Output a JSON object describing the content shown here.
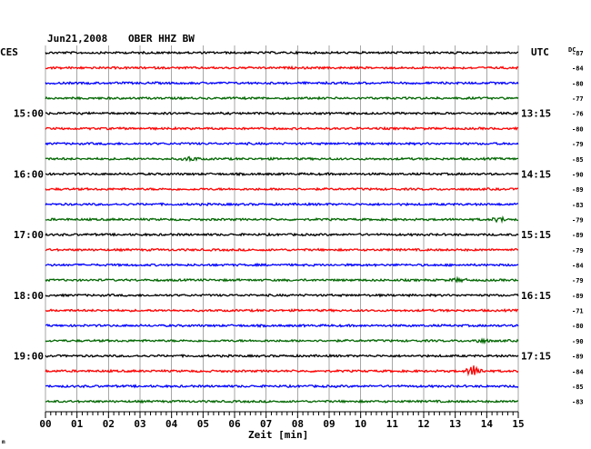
{
  "header": {
    "date": "Jun21,2008",
    "station": "OBER HHZ BW",
    "left_zone": "CES",
    "right_zone": "UTC",
    "dc_label": "DC"
  },
  "footer": {
    "xlabel": "Zeit [min]",
    "corner_mark": "m"
  },
  "colors": {
    "black": "#000000",
    "red": "#ff0000",
    "blue": "#0000ff",
    "green": "#006600",
    "grid": "#808080"
  },
  "chart_data": {
    "type": "line",
    "title": "Jun21,2008 OBER HHZ BW",
    "xlabel": "Zeit [min]",
    "xlim": [
      0,
      15
    ],
    "x_ticks": [
      "00",
      "01",
      "02",
      "03",
      "04",
      "05",
      "06",
      "07",
      "08",
      "09",
      "10",
      "11",
      "12",
      "13",
      "14",
      "15"
    ],
    "left_hour_labels": [
      {
        "trace_index": 4,
        "label": "15:00"
      },
      {
        "trace_index": 8,
        "label": "16:00"
      },
      {
        "trace_index": 12,
        "label": "17:00"
      },
      {
        "trace_index": 16,
        "label": "18:00"
      },
      {
        "trace_index": 20,
        "label": "19:00"
      }
    ],
    "right_hour_labels": [
      {
        "trace_index": 4,
        "label": "13:15"
      },
      {
        "trace_index": 8,
        "label": "14:15"
      },
      {
        "trace_index": 12,
        "label": "15:15"
      },
      {
        "trace_index": 16,
        "label": "16:15"
      },
      {
        "trace_index": 20,
        "label": "17:15"
      }
    ],
    "series": [
      {
        "color": "black",
        "dc": "-87"
      },
      {
        "color": "red",
        "dc": "-84"
      },
      {
        "color": "blue",
        "dc": "-80"
      },
      {
        "color": "green",
        "dc": "-77"
      },
      {
        "color": "black",
        "dc": "-76"
      },
      {
        "color": "red",
        "dc": "-80"
      },
      {
        "color": "blue",
        "dc": "-79"
      },
      {
        "color": "green",
        "dc": "-85",
        "event": {
          "minute": 4.6,
          "amp": 2.0
        }
      },
      {
        "color": "black",
        "dc": "-90"
      },
      {
        "color": "red",
        "dc": "-89"
      },
      {
        "color": "blue",
        "dc": "-83"
      },
      {
        "color": "green",
        "dc": "-79",
        "event": {
          "minute": 14.4,
          "amp": 2.2
        }
      },
      {
        "color": "black",
        "dc": "-89"
      },
      {
        "color": "red",
        "dc": "-79"
      },
      {
        "color": "blue",
        "dc": "-84"
      },
      {
        "color": "green",
        "dc": "-79",
        "event": {
          "minute": 13.1,
          "amp": 1.6
        }
      },
      {
        "color": "black",
        "dc": "-89"
      },
      {
        "color": "red",
        "dc": "-71"
      },
      {
        "color": "blue",
        "dc": "-80"
      },
      {
        "color": "green",
        "dc": "-90",
        "event": {
          "minute": 13.8,
          "amp": 1.8
        }
      },
      {
        "color": "black",
        "dc": "-89"
      },
      {
        "color": "red",
        "dc": "-84",
        "event": {
          "minute": 13.6,
          "amp": 6.0
        }
      },
      {
        "color": "blue",
        "dc": "-85"
      },
      {
        "color": "green",
        "dc": "-83"
      }
    ]
  }
}
